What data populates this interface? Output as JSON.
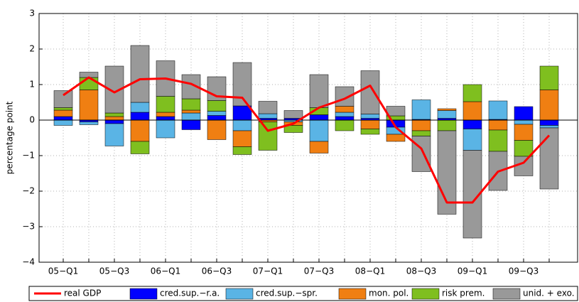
{
  "chart_data": {
    "type": "stacked-bar-line",
    "y_label": "percentage point",
    "categories": [
      "05−Q1",
      null,
      "05−Q3",
      null,
      "06−Q1",
      null,
      "06−Q3",
      null,
      "07−Q1",
      null,
      "07−Q3",
      null,
      "08−Q1",
      null,
      "08−Q3",
      null,
      "09−Q1",
      null,
      "09−Q3",
      null
    ],
    "series": [
      {
        "name": "cred.sup.−r.a.",
        "color": "#0000ff",
        "values": [
          0.1,
          -0.05,
          -0.1,
          0.22,
          0.1,
          -0.27,
          0.13,
          0.4,
          0.05,
          0.05,
          0.15,
          0.1,
          0.05,
          -0.2,
          0.02,
          0.05,
          -0.25,
          0.02,
          0.38,
          -0.15
        ]
      },
      {
        "name": "cred.sup.−spr.",
        "color": "#5ab4e5",
        "values": [
          -0.15,
          -0.08,
          -0.63,
          0.28,
          -0.5,
          0.2,
          0.12,
          -0.3,
          0.13,
          -0.05,
          -0.6,
          0.12,
          0.12,
          -0.2,
          0.55,
          0.22,
          -0.6,
          0.52,
          -0.12,
          -0.07
        ]
      },
      {
        "name": "mon. pol.",
        "color": "#f07f12",
        "values": [
          0.18,
          0.85,
          0.1,
          -0.6,
          0.12,
          0.08,
          -0.55,
          -0.45,
          -0.05,
          -0.1,
          -0.33,
          0.17,
          -0.25,
          -0.2,
          -0.3,
          0.05,
          0.52,
          -0.28,
          -0.45,
          0.85
        ]
      },
      {
        "name": "risk prem.",
        "color": "#7fbf1f",
        "values": [
          0.07,
          0.35,
          0.1,
          -0.35,
          0.45,
          0.32,
          0.3,
          -0.22,
          -0.8,
          -0.2,
          0.2,
          -0.3,
          -0.15,
          0.12,
          -0.15,
          -0.3,
          0.48,
          -0.6,
          -0.45,
          0.67
        ]
      },
      {
        "name": "unid. + exo.",
        "color": "#999999",
        "values": [
          0.48,
          0.15,
          1.32,
          1.6,
          1.0,
          0.68,
          0.67,
          1.22,
          0.35,
          0.22,
          0.93,
          0.55,
          1.22,
          0.27,
          -1.0,
          -2.35,
          -2.47,
          -1.1,
          -0.55,
          -1.72
        ]
      }
    ],
    "line": {
      "name": "real GDP",
      "color": "#ff0000",
      "values": [
        0.7,
        1.2,
        0.78,
        1.15,
        1.17,
        1.02,
        0.67,
        0.63,
        -0.3,
        -0.1,
        0.35,
        0.6,
        0.97,
        -0.2,
        -0.8,
        -2.32,
        -2.32,
        -1.45,
        -1.2,
        -0.43
      ]
    },
    "ylim": [
      -4,
      3
    ],
    "yticks": [
      {
        "value": -4,
        "label": "−4"
      },
      {
        "value": -3,
        "label": "−3"
      },
      {
        "value": -2,
        "label": "−2"
      },
      {
        "value": -1,
        "label": "−1"
      },
      0,
      1,
      2,
      3
    ],
    "grid": true,
    "legend": "bottom"
  }
}
